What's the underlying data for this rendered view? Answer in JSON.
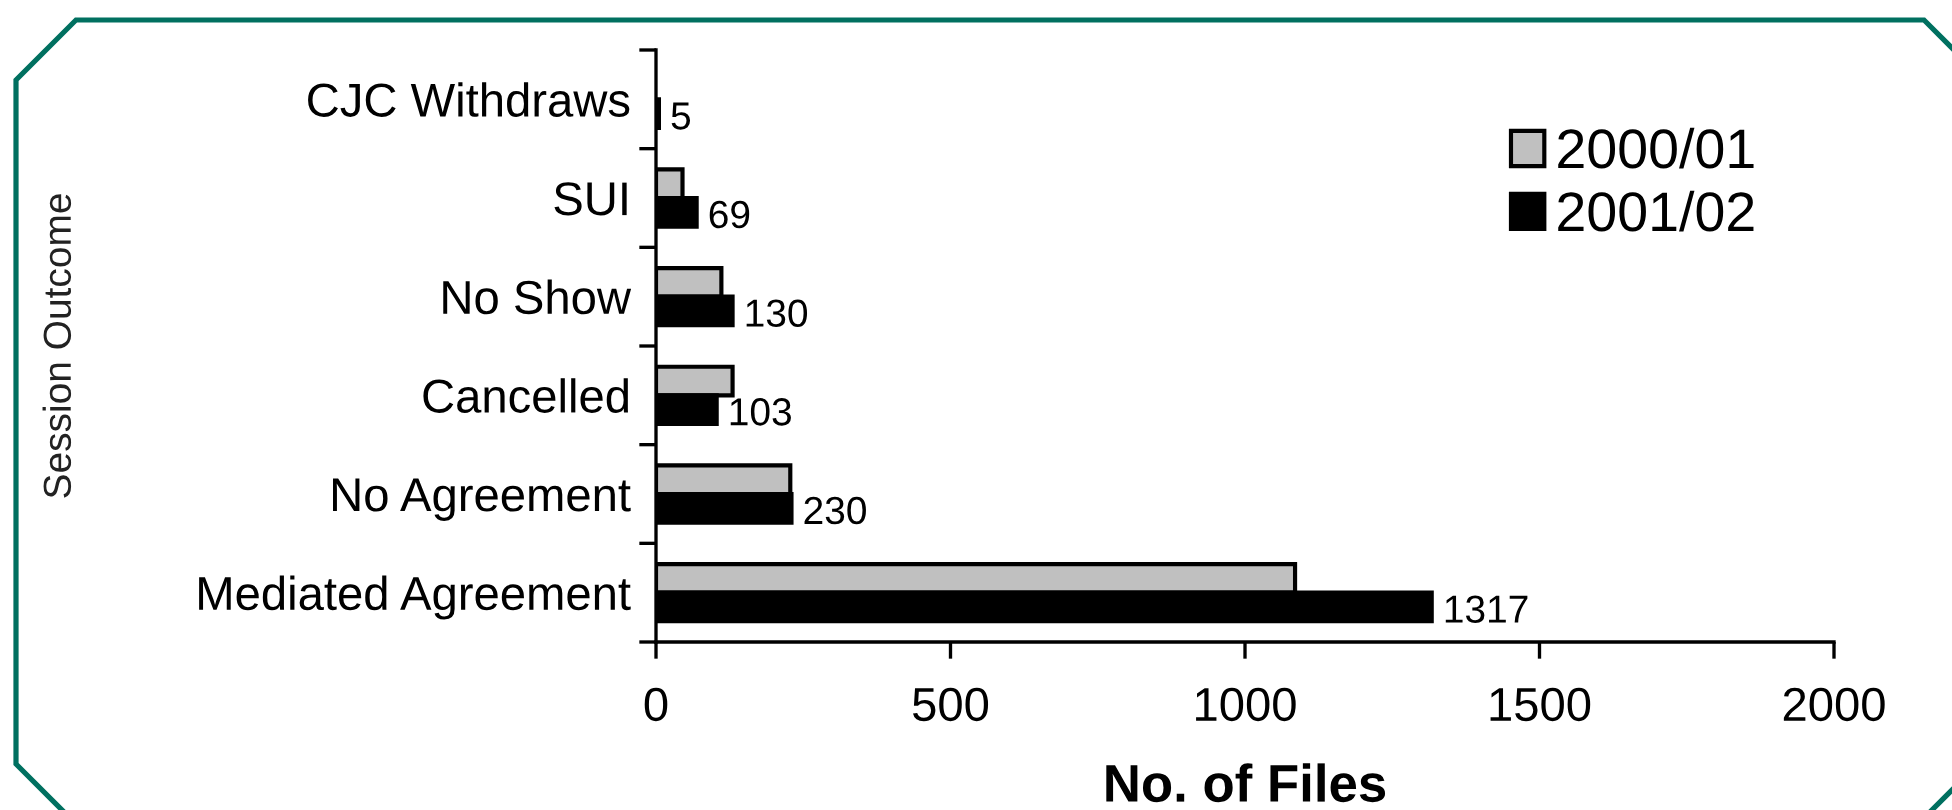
{
  "chart_data": {
    "type": "bar",
    "orientation": "horizontal",
    "xlabel": "No. of Files",
    "ylabel": "Session Outcome",
    "categories": [
      "CJC Withdraws",
      "SUI",
      "No Show",
      "Cancelled",
      "No Agreement",
      "Mediated Agreement"
    ],
    "series": [
      {
        "name": "2000/01",
        "color": "#c0c0c0",
        "values": [
          null,
          45,
          111,
          130,
          228,
          1085
        ]
      },
      {
        "name": "2001/02",
        "color": "#000000",
        "values": [
          5,
          69,
          130,
          103,
          230,
          1317
        ],
        "value_labels": [
          "5",
          "69",
          "130",
          "103",
          "230",
          "1317"
        ]
      }
    ],
    "xlim": [
      0,
      2000
    ],
    "xticks": [
      0,
      500,
      1000,
      1500,
      2000
    ],
    "legend": "top right",
    "grid": false
  }
}
